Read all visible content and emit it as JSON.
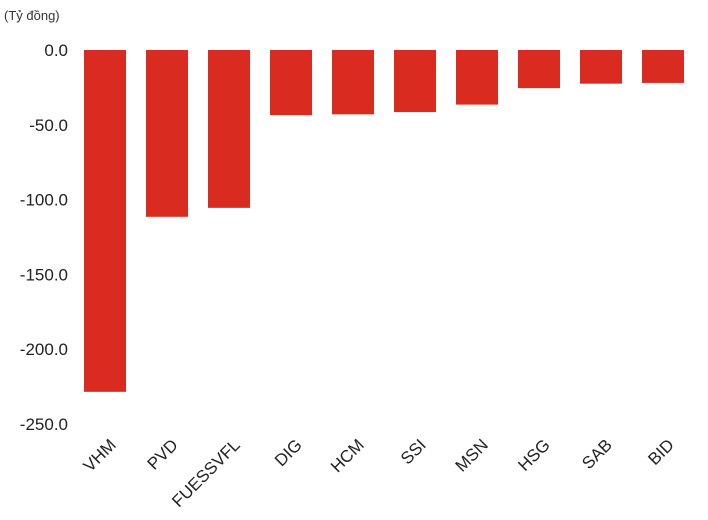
{
  "chart_data": {
    "type": "bar",
    "unit_label": "(Tỷ đồng)",
    "categories": [
      "VHM",
      "PVD",
      "FUESSVFL",
      "DIG",
      "HCM",
      "SSI",
      "MSN",
      "HSG",
      "SAB",
      "BID"
    ],
    "values": [
      -228.5,
      -111.5,
      -105.5,
      -43.5,
      -43.0,
      -41.5,
      -36.5,
      -25.5,
      -22.5,
      -22.0
    ],
    "yticks": [
      "0.0",
      "-50.0",
      "-100.0",
      "-150.0",
      "-200.0",
      "-250.0"
    ],
    "ylim": [
      -250,
      0
    ],
    "grid": false,
    "legend": "none",
    "bar_color": "#d92b1f",
    "xlabel": "",
    "ylabel": ""
  }
}
